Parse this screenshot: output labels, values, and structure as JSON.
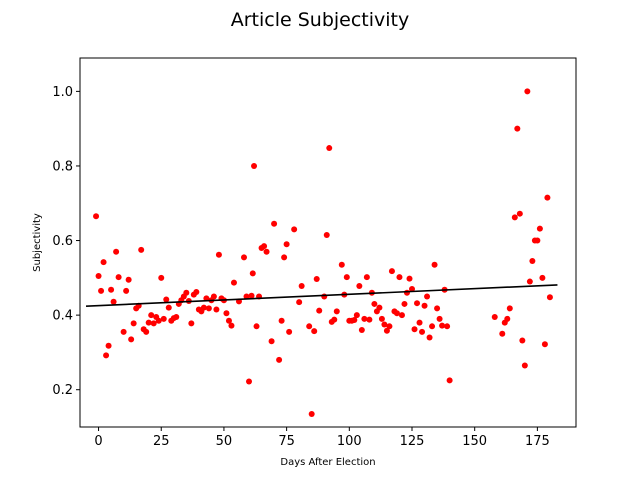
{
  "chart_data": {
    "type": "scatter",
    "title": "Article Subjectivity",
    "xlabel": "Days After Election",
    "ylabel": "Subjectivity",
    "xlim": [
      -7.4,
      190.4
    ],
    "ylim": [
      0.1,
      1.0895
    ],
    "xticks": [
      0,
      25,
      50,
      75,
      100,
      125,
      150,
      175
    ],
    "yticks": [
      0.2,
      0.4,
      0.6,
      0.8,
      1.0
    ],
    "ytick_labels": [
      "0.2",
      "0.4",
      "0.6",
      "0.8",
      "1.0"
    ],
    "grid": false,
    "point_color": "#ff0000",
    "trend_color": "#000000",
    "trendline": {
      "x": [
        -5,
        183
      ],
      "y": [
        0.424,
        0.481
      ]
    },
    "points": [
      [
        -1,
        0.665
      ],
      [
        0,
        0.505
      ],
      [
        1,
        0.465
      ],
      [
        2,
        0.542
      ],
      [
        3,
        0.292
      ],
      [
        4,
        0.318
      ],
      [
        5,
        0.468
      ],
      [
        6,
        0.436
      ],
      [
        7,
        0.57
      ],
      [
        8,
        0.502
      ],
      [
        10,
        0.355
      ],
      [
        11,
        0.465
      ],
      [
        12,
        0.495
      ],
      [
        13,
        0.335
      ],
      [
        14,
        0.378
      ],
      [
        15,
        0.418
      ],
      [
        16,
        0.425
      ],
      [
        17,
        0.575
      ],
      [
        18,
        0.362
      ],
      [
        19,
        0.355
      ],
      [
        20,
        0.38
      ],
      [
        21,
        0.4
      ],
      [
        22,
        0.378
      ],
      [
        23,
        0.395
      ],
      [
        24,
        0.385
      ],
      [
        25,
        0.5
      ],
      [
        26,
        0.39
      ],
      [
        27,
        0.442
      ],
      [
        28,
        0.42
      ],
      [
        29,
        0.385
      ],
      [
        30,
        0.392
      ],
      [
        31,
        0.395
      ],
      [
        32,
        0.43
      ],
      [
        33,
        0.44
      ],
      [
        34,
        0.45
      ],
      [
        35,
        0.46
      ],
      [
        36,
        0.438
      ],
      [
        37,
        0.378
      ],
      [
        38,
        0.455
      ],
      [
        39,
        0.462
      ],
      [
        40,
        0.415
      ],
      [
        41,
        0.41
      ],
      [
        42,
        0.42
      ],
      [
        43,
        0.445
      ],
      [
        44,
        0.418
      ],
      [
        45,
        0.44
      ],
      [
        46,
        0.45
      ],
      [
        47,
        0.415
      ],
      [
        48,
        0.562
      ],
      [
        49,
        0.445
      ],
      [
        50,
        0.44
      ],
      [
        51,
        0.405
      ],
      [
        52,
        0.385
      ],
      [
        53,
        0.372
      ],
      [
        54,
        0.487
      ],
      [
        56,
        0.437
      ],
      [
        58,
        0.555
      ],
      [
        59,
        0.45
      ],
      [
        60,
        0.222
      ],
      [
        61,
        0.452
      ],
      [
        61.5,
        0.512
      ],
      [
        62,
        0.8
      ],
      [
        63,
        0.37
      ],
      [
        64,
        0.45
      ],
      [
        65,
        0.58
      ],
      [
        66,
        0.585
      ],
      [
        67,
        0.57
      ],
      [
        69,
        0.33
      ],
      [
        70,
        0.645
      ],
      [
        72,
        0.28
      ],
      [
        73,
        0.385
      ],
      [
        74,
        0.555
      ],
      [
        75,
        0.59
      ],
      [
        76,
        0.355
      ],
      [
        78,
        0.63
      ],
      [
        80,
        0.435
      ],
      [
        81,
        0.478
      ],
      [
        84,
        0.37
      ],
      [
        85,
        0.135
      ],
      [
        86,
        0.357
      ],
      [
        87,
        0.497
      ],
      [
        88,
        0.412
      ],
      [
        90,
        0.45
      ],
      [
        91,
        0.615
      ],
      [
        92,
        0.848
      ],
      [
        93,
        0.382
      ],
      [
        94,
        0.388
      ],
      [
        95,
        0.41
      ],
      [
        97,
        0.535
      ],
      [
        98,
        0.455
      ],
      [
        99,
        0.502
      ],
      [
        100,
        0.385
      ],
      [
        101,
        0.385
      ],
      [
        102,
        0.387
      ],
      [
        103,
        0.4
      ],
      [
        104,
        0.478
      ],
      [
        105,
        0.36
      ],
      [
        106,
        0.39
      ],
      [
        107,
        0.502
      ],
      [
        108,
        0.388
      ],
      [
        109,
        0.46
      ],
      [
        110,
        0.43
      ],
      [
        111,
        0.41
      ],
      [
        112,
        0.42
      ],
      [
        113,
        0.39
      ],
      [
        114,
        0.375
      ],
      [
        115,
        0.358
      ],
      [
        116,
        0.37
      ],
      [
        117,
        0.518
      ],
      [
        118,
        0.41
      ],
      [
        119,
        0.405
      ],
      [
        120,
        0.502
      ],
      [
        121,
        0.4
      ],
      [
        122,
        0.43
      ],
      [
        123,
        0.46
      ],
      [
        124,
        0.498
      ],
      [
        125,
        0.47
      ],
      [
        126,
        0.362
      ],
      [
        127,
        0.432
      ],
      [
        128,
        0.38
      ],
      [
        129,
        0.355
      ],
      [
        130,
        0.425
      ],
      [
        131,
        0.45
      ],
      [
        132,
        0.34
      ],
      [
        133,
        0.37
      ],
      [
        134,
        0.535
      ],
      [
        135,
        0.418
      ],
      [
        136,
        0.39
      ],
      [
        137,
        0.372
      ],
      [
        138,
        0.468
      ],
      [
        139,
        0.37
      ],
      [
        140,
        0.225
      ],
      [
        158,
        0.395
      ],
      [
        161,
        0.35
      ],
      [
        162,
        0.38
      ],
      [
        163,
        0.39
      ],
      [
        164,
        0.418
      ],
      [
        166,
        0.662
      ],
      [
        167,
        0.9
      ],
      [
        168,
        0.672
      ],
      [
        169,
        0.332
      ],
      [
        170,
        0.265
      ],
      [
        171,
        1.0
      ],
      [
        172,
        0.49
      ],
      [
        173,
        0.545
      ],
      [
        174,
        0.6
      ],
      [
        175,
        0.6
      ],
      [
        176,
        0.632
      ],
      [
        177,
        0.5
      ],
      [
        178,
        0.322
      ],
      [
        179,
        0.715
      ],
      [
        180,
        0.448
      ]
    ]
  }
}
